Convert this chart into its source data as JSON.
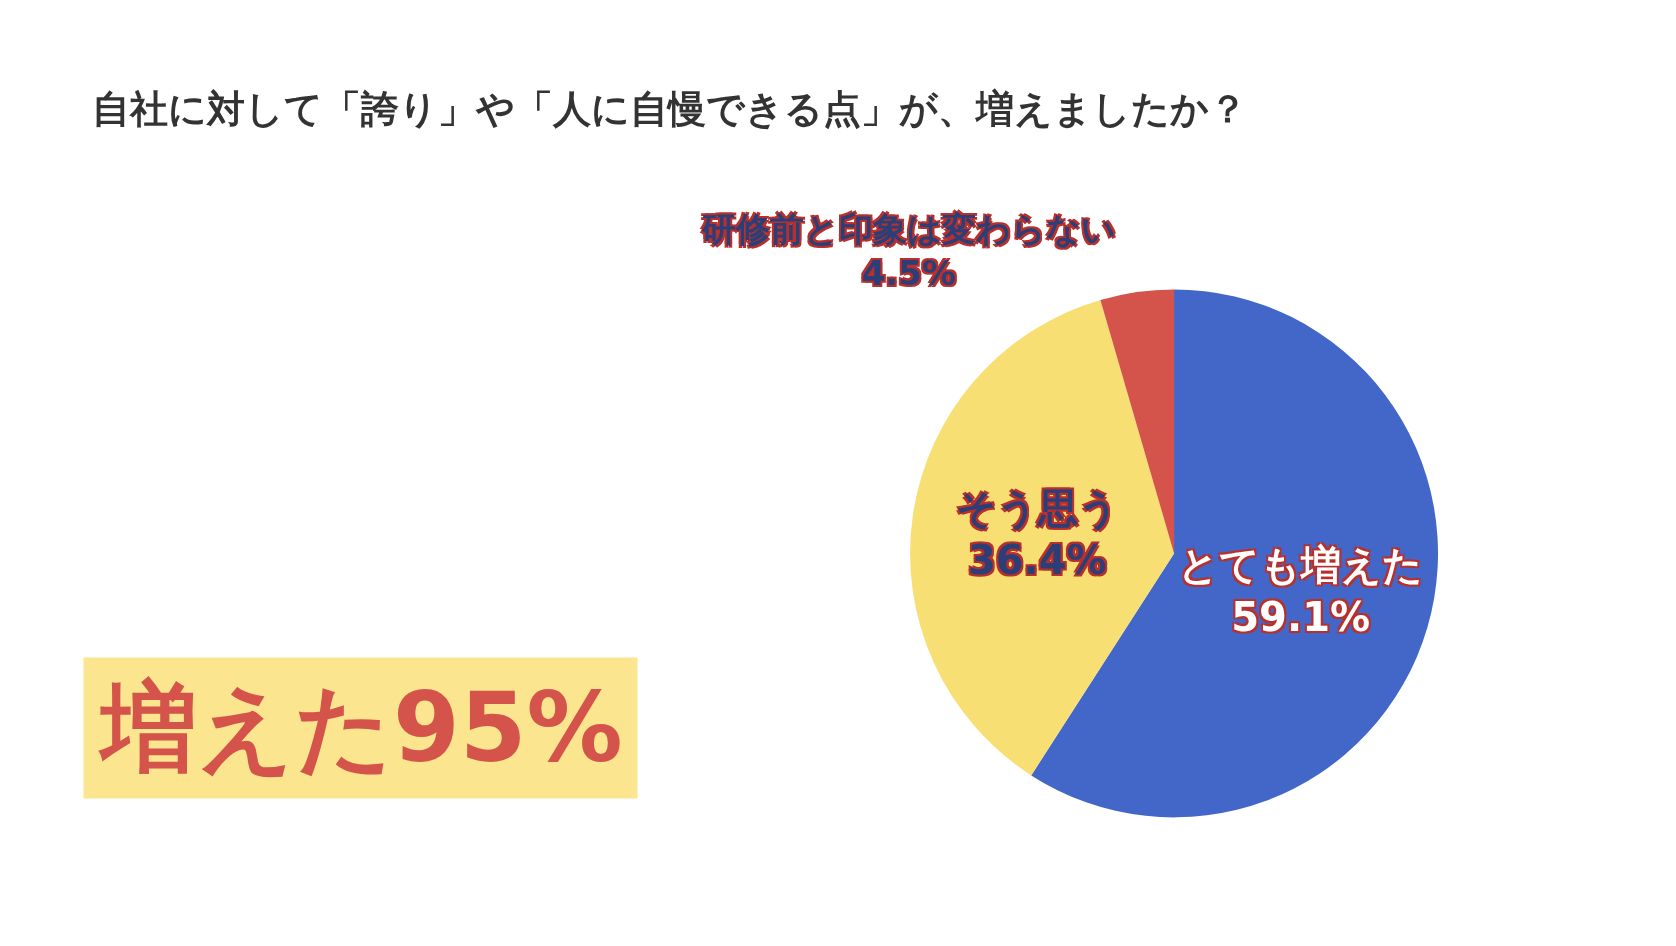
{
  "chart_data": {
    "type": "pie",
    "title": "自社に対して「誇り」や「人に自慢できる点」が、増えましたか？",
    "categories": [
      "とても増えた",
      "そう思う",
      "研修前と印象は変わらない"
    ],
    "values": [
      59.1,
      36.4,
      4.5
    ],
    "colors": [
      "#4267c8",
      "#f8df74",
      "#d4534a"
    ],
    "value_labels": [
      "59.1%",
      "36.4%",
      "4.5%"
    ],
    "annotations": [
      "増えた95%"
    ],
    "legend": false
  }
}
